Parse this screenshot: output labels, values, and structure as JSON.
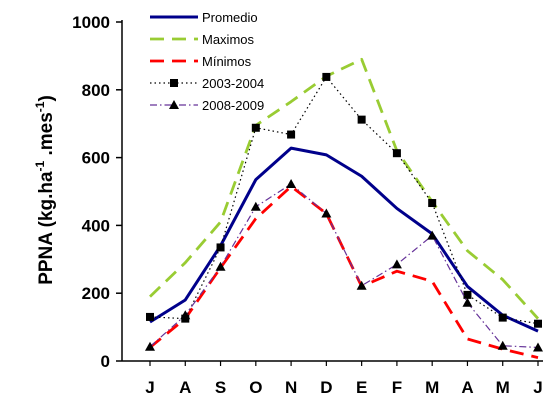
{
  "chart_data": {
    "type": "line",
    "title": "",
    "xlabel": "",
    "ylabel": {
      "main": "PPNA (kg.ha",
      "sup1": "-1",
      "mid": " .mes",
      "sup2": "-1",
      "end": ")"
    },
    "categories": [
      "J",
      "A",
      "S",
      "O",
      "N",
      "D",
      "E",
      "F",
      "M",
      "A",
      "M",
      "J"
    ],
    "ylim": [
      0,
      1000
    ],
    "yticks": [
      0,
      200,
      400,
      600,
      800,
      1000
    ],
    "ytick_labels": [
      "0",
      "200",
      "400",
      "600",
      "800",
      "1000"
    ],
    "grid": false,
    "legend_position": "top-left",
    "series": [
      {
        "name": "Promedio",
        "color": "#00008B",
        "style": "solid-thick",
        "marker": "none",
        "values": [
          115,
          180,
          340,
          535,
          628,
          608,
          545,
          450,
          375,
          220,
          135,
          88
        ]
      },
      {
        "name": "Maximos",
        "color": "#99CC33",
        "style": "long-dash",
        "marker": "none",
        "values": [
          190,
          290,
          410,
          695,
          765,
          840,
          890,
          620,
          470,
          325,
          240,
          125
        ]
      },
      {
        "name": "Mínimos",
        "color": "#FF0000",
        "style": "long-dash",
        "marker": "none",
        "values": [
          40,
          125,
          275,
          420,
          515,
          435,
          220,
          265,
          235,
          65,
          35,
          10
        ]
      },
      {
        "name": "2003-2004",
        "color": "#000000",
        "style": "dotted",
        "marker": "square",
        "values": [
          130,
          125,
          335,
          688,
          668,
          838,
          712,
          613,
          466,
          195,
          128,
          110
        ]
      },
      {
        "name": "2008-2009",
        "color": "#663399",
        "style": "dash-dot",
        "marker": "triangle",
        "values": [
          42,
          135,
          278,
          455,
          522,
          435,
          222,
          285,
          370,
          172,
          45,
          40
        ]
      }
    ]
  }
}
